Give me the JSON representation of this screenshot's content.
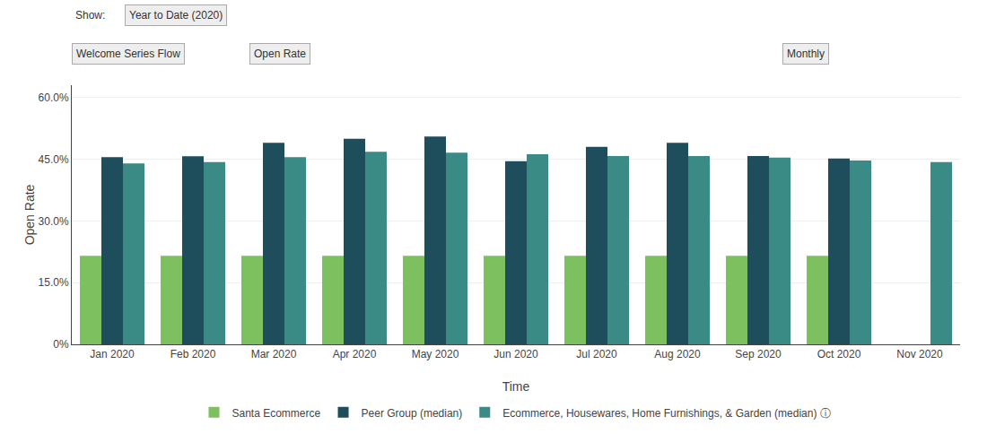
{
  "chart_data": {
    "type": "bar",
    "categories": [
      "Jan 2020",
      "Feb 2020",
      "Mar 2020",
      "Apr 2020",
      "May 2020",
      "Jun 2020",
      "Jul 2020",
      "Aug 2020",
      "Sep 2020",
      "Oct 2020",
      "Nov 2020"
    ],
    "series": [
      {
        "name": "Santa Ecommerce",
        "color": "#7dc060",
        "values": [
          0.215,
          0.215,
          0.215,
          0.215,
          0.215,
          0.215,
          0.215,
          0.215,
          0.215,
          0.215,
          null
        ]
      },
      {
        "name": "Peer Group (median)",
        "color": "#1e4d5c",
        "values": [
          0.455,
          0.457,
          0.49,
          0.5,
          0.505,
          0.445,
          0.48,
          0.49,
          0.458,
          0.452,
          null
        ]
      },
      {
        "name": "Ecommerce, Housewares, Home Furnishings, & Garden (median) ⓘ",
        "color": "#3a8a85",
        "values": [
          0.44,
          0.443,
          0.455,
          0.468,
          0.466,
          0.462,
          0.458,
          0.458,
          0.454,
          0.447,
          0.443
        ]
      }
    ],
    "xlabel": "Time",
    "ylabel": "Open Rate",
    "ylim": [
      0.0,
      0.63
    ],
    "yticks": [
      {
        "value": 0.0,
        "label": "0%"
      },
      {
        "value": 0.15,
        "label": "15.0%"
      },
      {
        "value": 0.3,
        "label": "30.0%"
      },
      {
        "value": 0.45,
        "label": "45.0%"
      },
      {
        "value": 0.6,
        "label": "60.0%"
      }
    ],
    "grid": true,
    "legend": "bottom",
    "annotations": [
      "Show:",
      "Year to Date (2020)",
      "Welcome Series Flow",
      "Open Rate",
      "Monthly"
    ]
  }
}
